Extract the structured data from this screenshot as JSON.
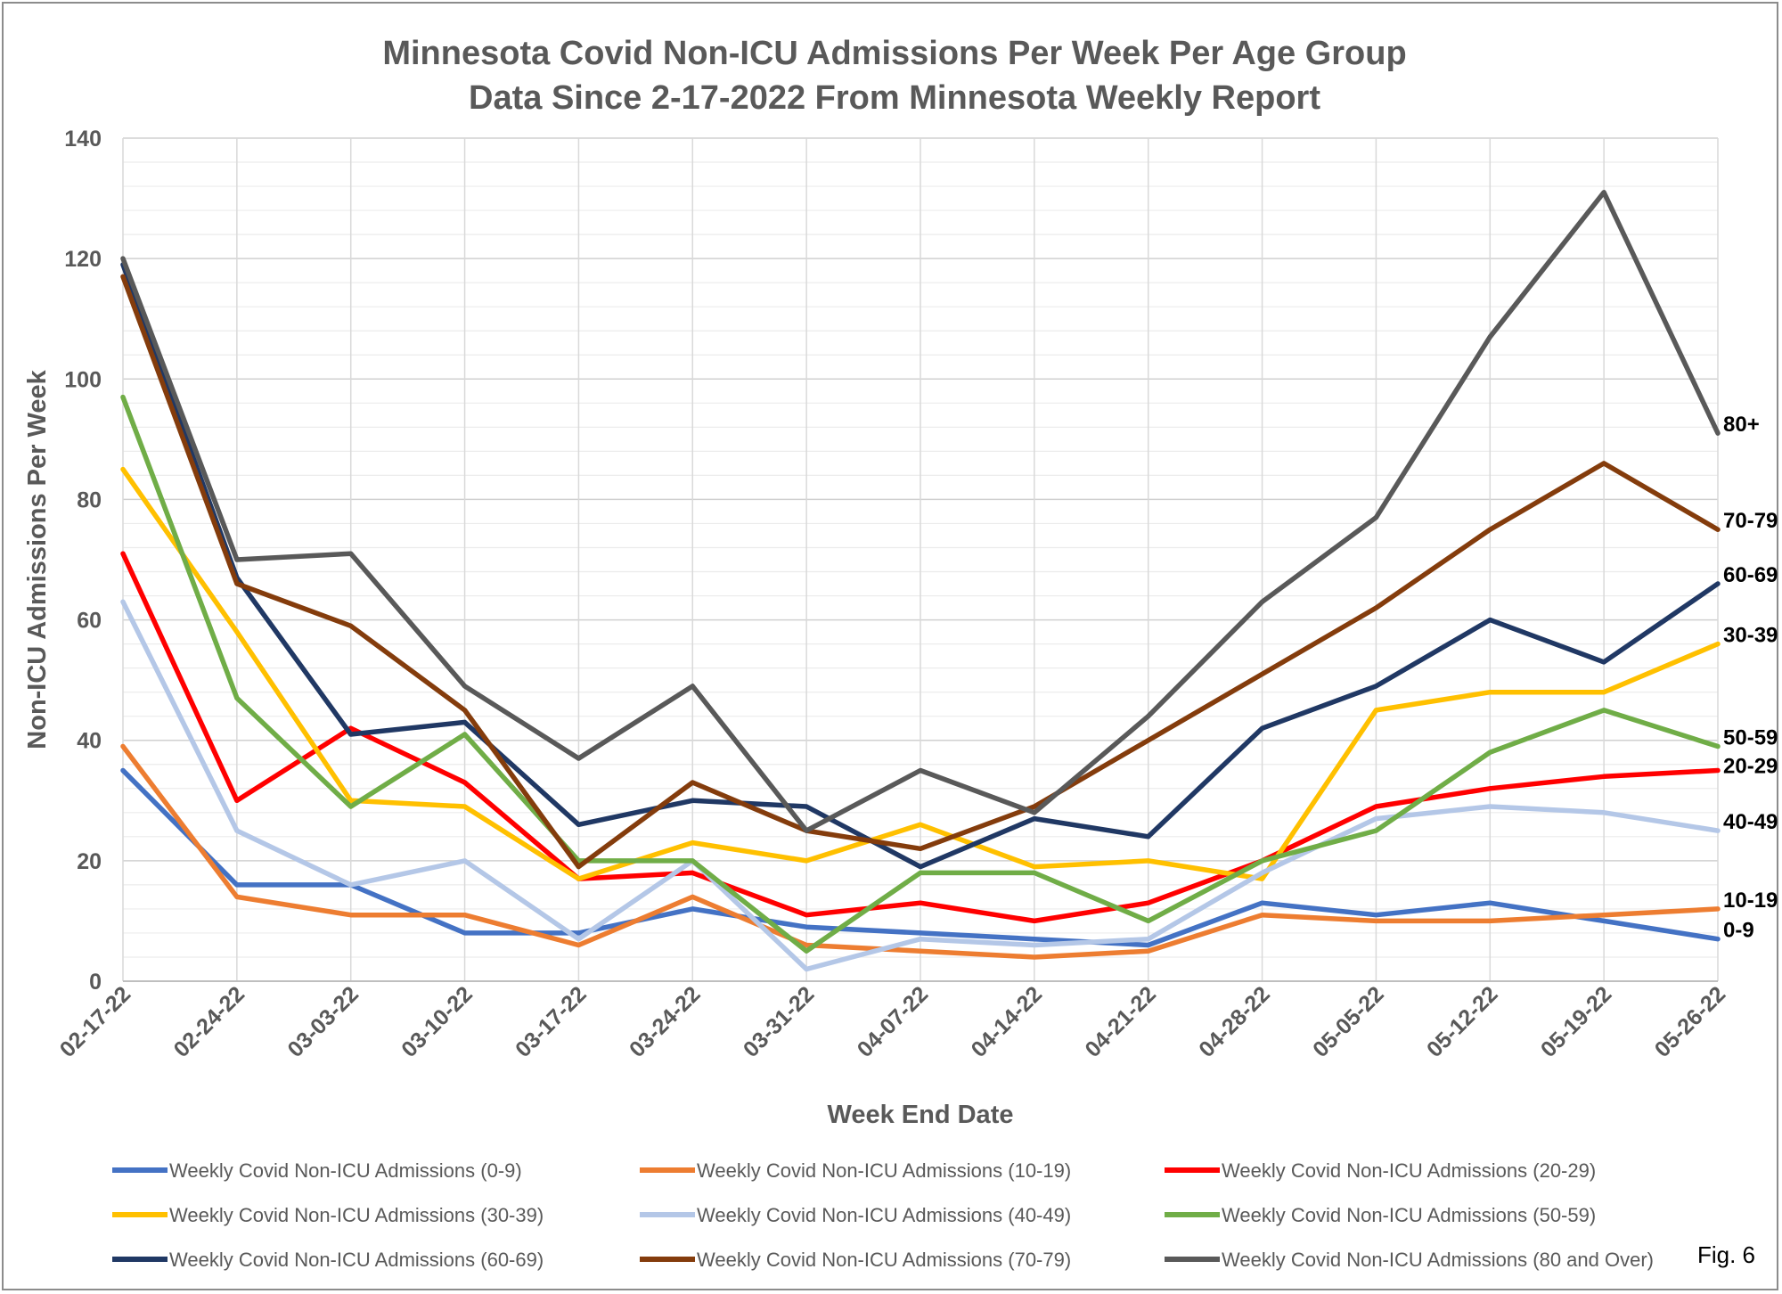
{
  "chart_data": {
    "type": "line",
    "title": "Minnesota Covid Non-ICU Admissions Per Week Per Age Group",
    "subtitle": "Data Since 2-17-2022 From Minnesota Weekly Report",
    "xlabel": "Week End Date",
    "ylabel": "Non-ICU Admissions Per Week",
    "ylim": [
      0,
      140
    ],
    "yticks": [
      0,
      20,
      40,
      60,
      80,
      100,
      120,
      140
    ],
    "minor_grid_step": 4,
    "grid": true,
    "legend": "bottom",
    "categories": [
      "02-17-22",
      "02-24-22",
      "03-03-22",
      "03-10-22",
      "03-17-22",
      "03-24-22",
      "03-31-22",
      "04-07-22",
      "04-14-22",
      "04-21-22",
      "04-28-22",
      "05-05-22",
      "05-12-22",
      "05-19-22",
      "05-26-22"
    ],
    "series": [
      {
        "name": "Weekly Covid Non-ICU Admissions (0-9)",
        "end_label": "0-9",
        "color": "#4472C4",
        "values": [
          35,
          16,
          16,
          8,
          8,
          12,
          9,
          8,
          7,
          6,
          13,
          11,
          13,
          10,
          7
        ]
      },
      {
        "name": "Weekly Covid Non-ICU Admissions (10-19)",
        "end_label": "10-19",
        "color": "#ED7D31",
        "values": [
          39,
          14,
          11,
          11,
          6,
          14,
          6,
          5,
          4,
          5,
          11,
          10,
          10,
          11,
          12
        ]
      },
      {
        "name": "Weekly Covid Non-ICU Admissions (20-29)",
        "end_label": "20-29",
        "color": "#FF0000",
        "values": [
          71,
          30,
          42,
          33,
          17,
          18,
          11,
          13,
          10,
          13,
          20,
          29,
          32,
          34,
          35
        ]
      },
      {
        "name": "Weekly Covid Non-ICU Admissions (30-39)",
        "end_label": "30-39",
        "color": "#FFC000",
        "values": [
          85,
          58,
          30,
          29,
          17,
          23,
          20,
          26,
          19,
          20,
          17,
          45,
          48,
          48,
          56
        ]
      },
      {
        "name": "Weekly Covid Non-ICU Admissions (40-49)",
        "end_label": "40-49",
        "color": "#B4C7E7",
        "values": [
          63,
          25,
          16,
          20,
          7,
          20,
          2,
          7,
          6,
          7,
          18,
          27,
          29,
          28,
          25
        ]
      },
      {
        "name": "Weekly Covid Non-ICU Admissions (50-59)",
        "end_label": "50-59",
        "color": "#70AD47",
        "values": [
          97,
          47,
          29,
          41,
          20,
          20,
          5,
          18,
          18,
          10,
          20,
          25,
          38,
          45,
          39
        ]
      },
      {
        "name": "Weekly Covid Non-ICU Admissions (60-69)",
        "end_label": "60-69",
        "color": "#203864",
        "values": [
          119,
          67,
          41,
          43,
          26,
          30,
          29,
          19,
          27,
          24,
          42,
          49,
          60,
          53,
          66
        ]
      },
      {
        "name": "Weekly Covid Non-ICU Admissions (70-79)",
        "end_label": "70-79",
        "color": "#843C0C",
        "values": [
          117,
          66,
          59,
          45,
          19,
          33,
          25,
          22,
          29,
          40,
          51,
          62,
          75,
          86,
          75
        ]
      },
      {
        "name": "Weekly Covid Non-ICU Admissions (80 and Over)",
        "end_label": "80+",
        "color": "#595959",
        "values": [
          120,
          70,
          71,
          49,
          37,
          49,
          25,
          35,
          28,
          44,
          63,
          77,
          107,
          131,
          91
        ]
      }
    ]
  },
  "figure_label": "Fig. 6"
}
